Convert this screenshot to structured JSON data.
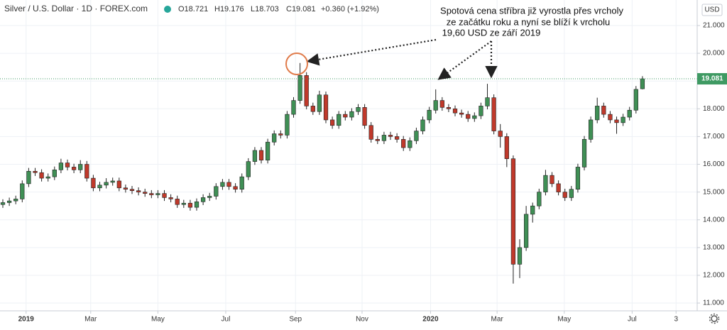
{
  "chart_data": {
    "type": "candlestick",
    "title": "Silver / U.S. Dollar · 1D · FOREX.com",
    "legend_ohlc": [
      "O18.721",
      "H19.176",
      "L18.703",
      "C19.081",
      "+0.360 (+1.92%)"
    ],
    "currency": "USD",
    "annotation": [
      "Spotová cena stříbra již vyrostla přes vrcholy",
      "ze začátku roku a nyní se blíží k vrcholu",
      "19,60 USD ze září 2019"
    ],
    "last_price": 19.081,
    "up_color": "#3f8f55",
    "down_color": "#c0392b",
    "wick_color": "#222222",
    "last_color": "#3f9a63",
    "grid": true,
    "categories": [
      null,
      null,
      null,
      null,
      null,
      null,
      null,
      null,
      null,
      null,
      null,
      null,
      null,
      null,
      null,
      null,
      null,
      null,
      null,
      null,
      null,
      null,
      null,
      null,
      null,
      null,
      null,
      null,
      null,
      null,
      null,
      null,
      null,
      null,
      null,
      null,
      null,
      null,
      null,
      null,
      null,
      null,
      null,
      null,
      null,
      null,
      null,
      null,
      null,
      null,
      null,
      null,
      null,
      null,
      null,
      null,
      null,
      null,
      null,
      null,
      null,
      null,
      null,
      null,
      null,
      null,
      null,
      null,
      null,
      null,
      null,
      null,
      null,
      null,
      null,
      null,
      null,
      null,
      null,
      null,
      null,
      null,
      null,
      null,
      null,
      null,
      null,
      null,
      null,
      null,
      null,
      null,
      null,
      null,
      null,
      null,
      null,
      null,
      null,
      null
    ],
    "open": [
      14.55,
      14.62,
      14.68,
      14.75,
      15.3,
      15.75,
      15.7,
      15.5,
      15.55,
      15.8,
      16.05,
      15.9,
      15.8,
      16.0,
      15.5,
      15.15,
      15.25,
      15.35,
      15.4,
      15.15,
      15.1,
      15.05,
      15.0,
      14.95,
      14.9,
      14.95,
      14.8,
      14.75,
      14.55,
      14.6,
      14.45,
      14.65,
      14.8,
      14.85,
      15.2,
      15.35,
      15.2,
      15.1,
      15.55,
      16.1,
      16.5,
      16.15,
      16.8,
      17.1,
      17.05,
      17.8,
      18.3,
      19.2,
      18.1,
      17.9,
      18.5,
      17.6,
      17.4,
      17.8,
      17.7,
      17.9,
      18.05,
      17.4,
      16.9,
      16.85,
      17.05,
      17.0,
      16.9,
      16.6,
      16.85,
      17.2,
      17.6,
      17.95,
      18.3,
      18.05,
      18.0,
      17.85,
      17.8,
      17.65,
      17.75,
      18.1,
      18.4,
      17.2,
      17.0,
      16.2,
      12.4,
      13.0,
      14.2,
      14.5,
      15.0,
      15.6,
      15.3,
      15.0,
      14.8,
      15.1,
      15.9,
      16.9,
      17.6,
      18.1,
      17.8,
      17.6,
      17.5,
      17.7,
      17.95,
      18.721
    ],
    "high": [
      14.74,
      14.8,
      14.87,
      15.42,
      15.87,
      15.87,
      15.82,
      15.67,
      15.92,
      16.2,
      16.17,
      16.02,
      16.15,
      16.12,
      15.62,
      15.37,
      15.5,
      15.52,
      15.52,
      15.27,
      15.22,
      15.17,
      15.12,
      15.07,
      15.07,
      15.07,
      14.92,
      14.87,
      14.72,
      14.72,
      14.77,
      14.92,
      14.97,
      15.32,
      15.47,
      15.47,
      15.32,
      15.67,
      16.22,
      16.62,
      16.62,
      16.92,
      17.22,
      17.22,
      17.92,
      18.42,
      19.65,
      19.32,
      18.22,
      18.65,
      18.62,
      17.72,
      17.92,
      17.92,
      18.02,
      18.17,
      18.17,
      17.52,
      17.02,
      17.17,
      17.17,
      17.12,
      17.02,
      16.97,
      17.32,
      17.72,
      18.07,
      18.7,
      18.42,
      18.17,
      18.12,
      17.97,
      17.92,
      17.87,
      18.22,
      18.9,
      18.52,
      17.45,
      17.12,
      16.32,
      13.3,
      14.5,
      14.62,
      15.12,
      15.8,
      15.72,
      15.42,
      15.12,
      15.22,
      16.02,
      17.02,
      17.72,
      18.4,
      18.22,
      17.92,
      17.72,
      17.82,
      18.07,
      18.82,
      19.176
    ],
    "low": [
      14.43,
      14.5,
      14.56,
      14.63,
      15.18,
      15.58,
      15.38,
      15.38,
      15.43,
      15.68,
      15.78,
      15.68,
      15.68,
      15.38,
      15.03,
      15.03,
      15.13,
      15.23,
      15.03,
      14.98,
      14.93,
      14.88,
      14.83,
      14.78,
      14.78,
      14.68,
      14.63,
      14.43,
      14.43,
      14.33,
      14.33,
      14.53,
      14.68,
      14.73,
      15.08,
      15.08,
      14.98,
      14.98,
      15.43,
      15.98,
      16.03,
      16.03,
      16.68,
      16.93,
      16.93,
      17.68,
      18.18,
      17.98,
      17.78,
      17.78,
      17.48,
      17.28,
      17.28,
      17.58,
      17.58,
      17.78,
      17.28,
      16.78,
      16.73,
      16.73,
      16.88,
      16.78,
      16.48,
      16.48,
      16.73,
      17.08,
      17.48,
      17.83,
      17.93,
      17.88,
      17.73,
      17.68,
      17.53,
      17.53,
      17.63,
      17.98,
      17.08,
      16.6,
      15.9,
      11.7,
      11.9,
      12.88,
      13.9,
      14.38,
      14.88,
      15.18,
      14.88,
      14.68,
      14.68,
      14.98,
      15.78,
      16.78,
      17.48,
      17.68,
      17.48,
      17.1,
      17.38,
      17.58,
      17.83,
      18.703
    ],
    "close": [
      14.62,
      14.68,
      14.75,
      15.3,
      15.75,
      15.7,
      15.5,
      15.55,
      15.8,
      16.05,
      15.9,
      15.8,
      16.0,
      15.5,
      15.15,
      15.25,
      15.35,
      15.4,
      15.15,
      15.1,
      15.05,
      15.0,
      14.95,
      14.9,
      14.95,
      14.8,
      14.75,
      14.55,
      14.6,
      14.45,
      14.65,
      14.8,
      14.85,
      15.2,
      15.35,
      15.2,
      15.1,
      15.55,
      16.1,
      16.5,
      16.15,
      16.8,
      17.1,
      17.05,
      17.8,
      18.3,
      19.2,
      18.1,
      17.9,
      18.5,
      17.6,
      17.4,
      17.8,
      17.7,
      17.9,
      18.05,
      17.4,
      16.9,
      16.85,
      17.05,
      17.0,
      16.9,
      16.6,
      16.85,
      17.2,
      17.6,
      17.95,
      18.3,
      18.05,
      18.0,
      17.85,
      17.8,
      17.65,
      17.75,
      18.1,
      18.4,
      17.2,
      17.0,
      16.2,
      12.4,
      13.0,
      14.2,
      14.5,
      15.0,
      15.6,
      15.3,
      15.0,
      14.8,
      15.1,
      15.9,
      16.9,
      17.6,
      18.1,
      17.8,
      17.6,
      17.5,
      17.7,
      17.95,
      18.7,
      19.081
    ],
    "xlim": [
      -0.44,
      107.47
    ],
    "xticks": [
      {
        "value": 3.6,
        "label": "2019"
      },
      {
        "value": 13.6,
        "label": "Mar"
      },
      {
        "value": 24,
        "label": "May"
      },
      {
        "value": 34.5,
        "label": "Jul"
      },
      {
        "value": 45.3,
        "label": "Sep"
      },
      {
        "value": 55.6,
        "label": "Nov"
      },
      {
        "value": 66.2,
        "label": "2020"
      },
      {
        "value": 76.5,
        "label": "Mar"
      },
      {
        "value": 86.9,
        "label": "May"
      },
      {
        "value": 97.4,
        "label": "Jul"
      },
      {
        "value": 104.2,
        "label": "3"
      }
    ],
    "ylim": [
      10.72,
      21.92
    ],
    "yticks": [
      {
        "value": 11,
        "label": "11.000"
      },
      {
        "value": 12,
        "label": "12.000"
      },
      {
        "value": 13,
        "label": "13.000"
      },
      {
        "value": 14,
        "label": "14.000"
      },
      {
        "value": 15,
        "label": "15.000"
      },
      {
        "value": 16,
        "label": "16.000"
      },
      {
        "value": 17,
        "label": "17.000"
      },
      {
        "value": 18,
        "label": "18.000"
      },
      {
        "value": 19,
        "label": "19.000"
      },
      {
        "value": 20,
        "label": "20.000"
      },
      {
        "value": 21,
        "label": "21.000"
      }
    ]
  }
}
